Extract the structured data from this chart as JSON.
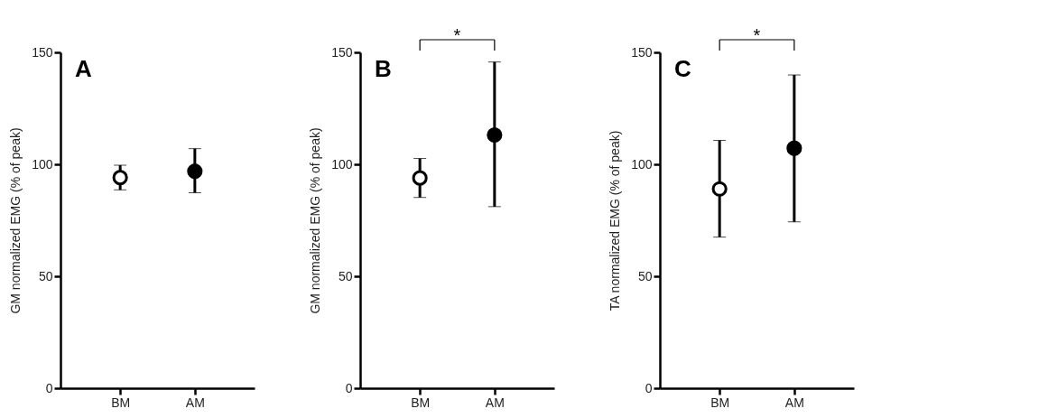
{
  "chart_data": [
    {
      "type": "scatter",
      "title": "A",
      "ylabel": "GM normalized EMG (% of peak)",
      "categories": [
        "BM",
        "AM"
      ],
      "values": [
        94.1,
        96.9
      ],
      "errors": [
        [
          88.6,
          99.6
        ],
        [
          87.3,
          107
        ]
      ],
      "colors": [
        "#ffffff",
        "#000000"
      ],
      "ylim": [
        0,
        150
      ],
      "yticks": [
        0,
        50,
        100,
        150
      ],
      "grid": false,
      "marker": "circle"
    },
    {
      "type": "scatter",
      "title": "B",
      "ylabel": "GM normalized EMG (% of peak)",
      "categories": [
        "BM",
        "AM"
      ],
      "values": [
        93.9,
        113.1
      ],
      "errors": [
        [
          85.2,
          102.6
        ],
        [
          81.1,
          145.7
        ]
      ],
      "colors": [
        "#ffffff",
        "#000000"
      ],
      "ylim": [
        0,
        150
      ],
      "yticks": [
        0,
        50,
        100,
        150
      ],
      "grid": false,
      "marker": "circle",
      "annotations": [
        "*"
      ]
    },
    {
      "type": "scatter",
      "title": "C",
      "ylabel": "TA normalized EMG (% of peak)",
      "categories": [
        "BM",
        "AM"
      ],
      "values": [
        89.0,
        107.2
      ],
      "errors": [
        [
          67.5,
          110.7
        ],
        [
          74.3,
          139.9
        ]
      ],
      "colors": [
        "#ffffff",
        "#000000"
      ],
      "ylim": [
        0,
        150
      ],
      "yticks": [
        0,
        50,
        100,
        150
      ],
      "grid": false,
      "marker": "circle",
      "annotations": [
        "*"
      ]
    }
  ]
}
